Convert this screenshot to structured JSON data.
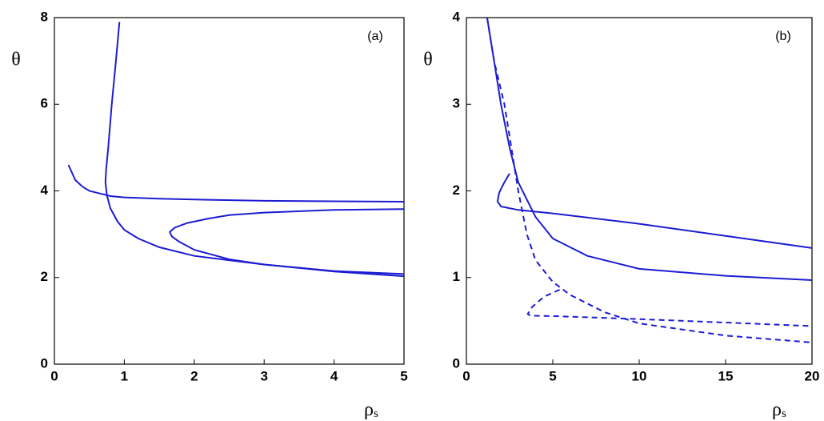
{
  "chart_data": [
    {
      "type": "line",
      "annotation": "(a)",
      "ylabel": "θ",
      "xlabel": {
        "symbol": "ρ",
        "subscript": "s"
      },
      "xlim": [
        0,
        5
      ],
      "xticks": [
        0,
        1,
        2,
        3,
        4,
        5
      ],
      "ylim": [
        0,
        8
      ],
      "yticks": [
        0,
        2,
        4,
        6,
        8
      ],
      "series": [
        {
          "color": "#1c1cd2",
          "dash": false,
          "x": [
            0.93,
            0.88,
            0.82,
            0.77,
            0.74,
            0.73,
            0.75,
            0.8,
            0.9,
            1.0,
            1.2,
            1.5,
            2.0,
            2.5,
            3.0,
            4.0,
            5.0
          ],
          "values": [
            7.9,
            7.0,
            6.0,
            5.0,
            4.5,
            4.2,
            3.9,
            3.6,
            3.3,
            3.1,
            2.9,
            2.7,
            2.5,
            2.4,
            2.3,
            2.15,
            2.08
          ]
        },
        {
          "color": "#1c1cd2",
          "dash": false,
          "x": [
            0.2,
            0.3,
            0.4,
            0.5,
            0.7,
            0.8,
            1.0,
            1.5,
            2.0,
            3.0,
            4.0,
            5.0
          ],
          "values": [
            4.6,
            4.25,
            4.1,
            4.0,
            3.92,
            3.88,
            3.85,
            3.82,
            3.8,
            3.77,
            3.76,
            3.75
          ]
        },
        {
          "color": "#1c1cd2",
          "dash": false,
          "x": [
            5.0,
            4.0,
            3.0,
            2.5,
            2.2,
            1.9,
            1.72,
            1.65,
            1.68,
            1.78,
            2.0,
            2.5,
            3.0,
            4.0,
            5.0
          ],
          "values": [
            3.58,
            3.56,
            3.5,
            3.44,
            3.36,
            3.26,
            3.15,
            3.05,
            2.95,
            2.83,
            2.64,
            2.42,
            2.3,
            2.14,
            2.03
          ]
        }
      ]
    },
    {
      "type": "line",
      "annotation": "(b)",
      "ylabel": "θ",
      "xlabel": {
        "symbol": "ρ",
        "subscript": "s"
      },
      "xlim": [
        0,
        20
      ],
      "xticks": [
        0,
        5,
        10,
        15,
        20
      ],
      "ylim": [
        0,
        4
      ],
      "yticks": [
        0,
        1,
        2,
        3,
        4
      ],
      "series": [
        {
          "color": "#1c1cd2",
          "dash": false,
          "x": [
            1.2,
            1.6,
            2.0,
            2.5,
            3.0,
            4.0,
            5.0,
            7.0,
            10.0,
            15.0,
            20.0
          ],
          "values": [
            4.0,
            3.5,
            3.0,
            2.5,
            2.1,
            1.7,
            1.45,
            1.25,
            1.1,
            1.02,
            0.97
          ]
        },
        {
          "color": "#1c1cd2",
          "dash": false,
          "x": [
            2.5,
            2.2,
            1.9,
            1.8,
            2.0,
            3.0,
            5.0,
            10.0,
            15.0,
            20.0
          ],
          "values": [
            2.2,
            2.1,
            1.98,
            1.88,
            1.82,
            1.78,
            1.74,
            1.62,
            1.48,
            1.34
          ]
        },
        {
          "color": "#1c1cd2",
          "dash": true,
          "x": [
            1.2,
            1.6,
            2.2,
            2.6,
            3.0,
            3.5,
            4.0,
            5.0,
            6.0,
            8.0,
            10.0,
            15.0,
            20.0
          ],
          "values": [
            4.0,
            3.5,
            3.0,
            2.5,
            2.0,
            1.5,
            1.2,
            0.95,
            0.8,
            0.6,
            0.47,
            0.33,
            0.25
          ]
        },
        {
          "color": "#1c1cd2",
          "dash": true,
          "x": [
            5.4,
            4.5,
            3.8,
            3.55,
            3.7,
            5.0,
            10.0,
            15.0,
            20.0
          ],
          "values": [
            0.86,
            0.78,
            0.66,
            0.58,
            0.56,
            0.555,
            0.52,
            0.48,
            0.44
          ]
        }
      ]
    }
  ]
}
